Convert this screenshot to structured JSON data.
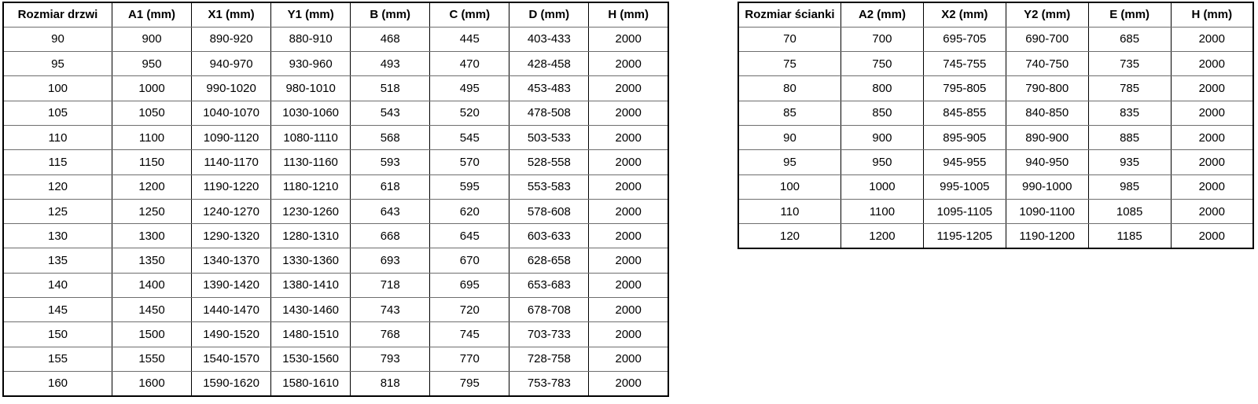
{
  "tables": {
    "doors": {
      "name": "Rozmiar drzwi",
      "headers": [
        "Rozmiar drzwi",
        "A1 (mm)",
        "X1 (mm)",
        "Y1 (mm)",
        "B (mm)",
        "C (mm)",
        "D (mm)",
        "H (mm)"
      ],
      "rows": [
        [
          "90",
          "900",
          "890-920",
          "880-910",
          "468",
          "445",
          "403-433",
          "2000"
        ],
        [
          "95",
          "950",
          "940-970",
          "930-960",
          "493",
          "470",
          "428-458",
          "2000"
        ],
        [
          "100",
          "1000",
          "990-1020",
          "980-1010",
          "518",
          "495",
          "453-483",
          "2000"
        ],
        [
          "105",
          "1050",
          "1040-1070",
          "1030-1060",
          "543",
          "520",
          "478-508",
          "2000"
        ],
        [
          "110",
          "1100",
          "1090-1120",
          "1080-1110",
          "568",
          "545",
          "503-533",
          "2000"
        ],
        [
          "115",
          "1150",
          "1140-1170",
          "1130-1160",
          "593",
          "570",
          "528-558",
          "2000"
        ],
        [
          "120",
          "1200",
          "1190-1220",
          "1180-1210",
          "618",
          "595",
          "553-583",
          "2000"
        ],
        [
          "125",
          "1250",
          "1240-1270",
          "1230-1260",
          "643",
          "620",
          "578-608",
          "2000"
        ],
        [
          "130",
          "1300",
          "1290-1320",
          "1280-1310",
          "668",
          "645",
          "603-633",
          "2000"
        ],
        [
          "135",
          "1350",
          "1340-1370",
          "1330-1360",
          "693",
          "670",
          "628-658",
          "2000"
        ],
        [
          "140",
          "1400",
          "1390-1420",
          "1380-1410",
          "718",
          "695",
          "653-683",
          "2000"
        ],
        [
          "145",
          "1450",
          "1440-1470",
          "1430-1460",
          "743",
          "720",
          "678-708",
          "2000"
        ],
        [
          "150",
          "1500",
          "1490-1520",
          "1480-1510",
          "768",
          "745",
          "703-733",
          "2000"
        ],
        [
          "155",
          "1550",
          "1540-1570",
          "1530-1560",
          "793",
          "770",
          "728-758",
          "2000"
        ],
        [
          "160",
          "1600",
          "1590-1620",
          "1580-1610",
          "818",
          "795",
          "753-783",
          "2000"
        ]
      ]
    },
    "walls": {
      "name": "Rozmiar ścianki",
      "headers": [
        "Rozmiar ścianki",
        "A2 (mm)",
        "X2 (mm)",
        "Y2 (mm)",
        "E (mm)",
        "H (mm)"
      ],
      "rows": [
        [
          "70",
          "700",
          "695-705",
          "690-700",
          "685",
          "2000"
        ],
        [
          "75",
          "750",
          "745-755",
          "740-750",
          "735",
          "2000"
        ],
        [
          "80",
          "800",
          "795-805",
          "790-800",
          "785",
          "2000"
        ],
        [
          "85",
          "850",
          "845-855",
          "840-850",
          "835",
          "2000"
        ],
        [
          "90",
          "900",
          "895-905",
          "890-900",
          "885",
          "2000"
        ],
        [
          "95",
          "950",
          "945-955",
          "940-950",
          "935",
          "2000"
        ],
        [
          "100",
          "1000",
          "995-1005",
          "990-1000",
          "985",
          "2000"
        ],
        [
          "110",
          "1100",
          "1095-1105",
          "1090-1100",
          "1085",
          "2000"
        ],
        [
          "120",
          "1200",
          "1195-1205",
          "1190-1200",
          "1185",
          "2000"
        ]
      ]
    }
  },
  "colors": {
    "outer_border": "#000000",
    "inner_horizontal_border": "#6e6e6e",
    "text": "#000000",
    "background": "#ffffff"
  }
}
